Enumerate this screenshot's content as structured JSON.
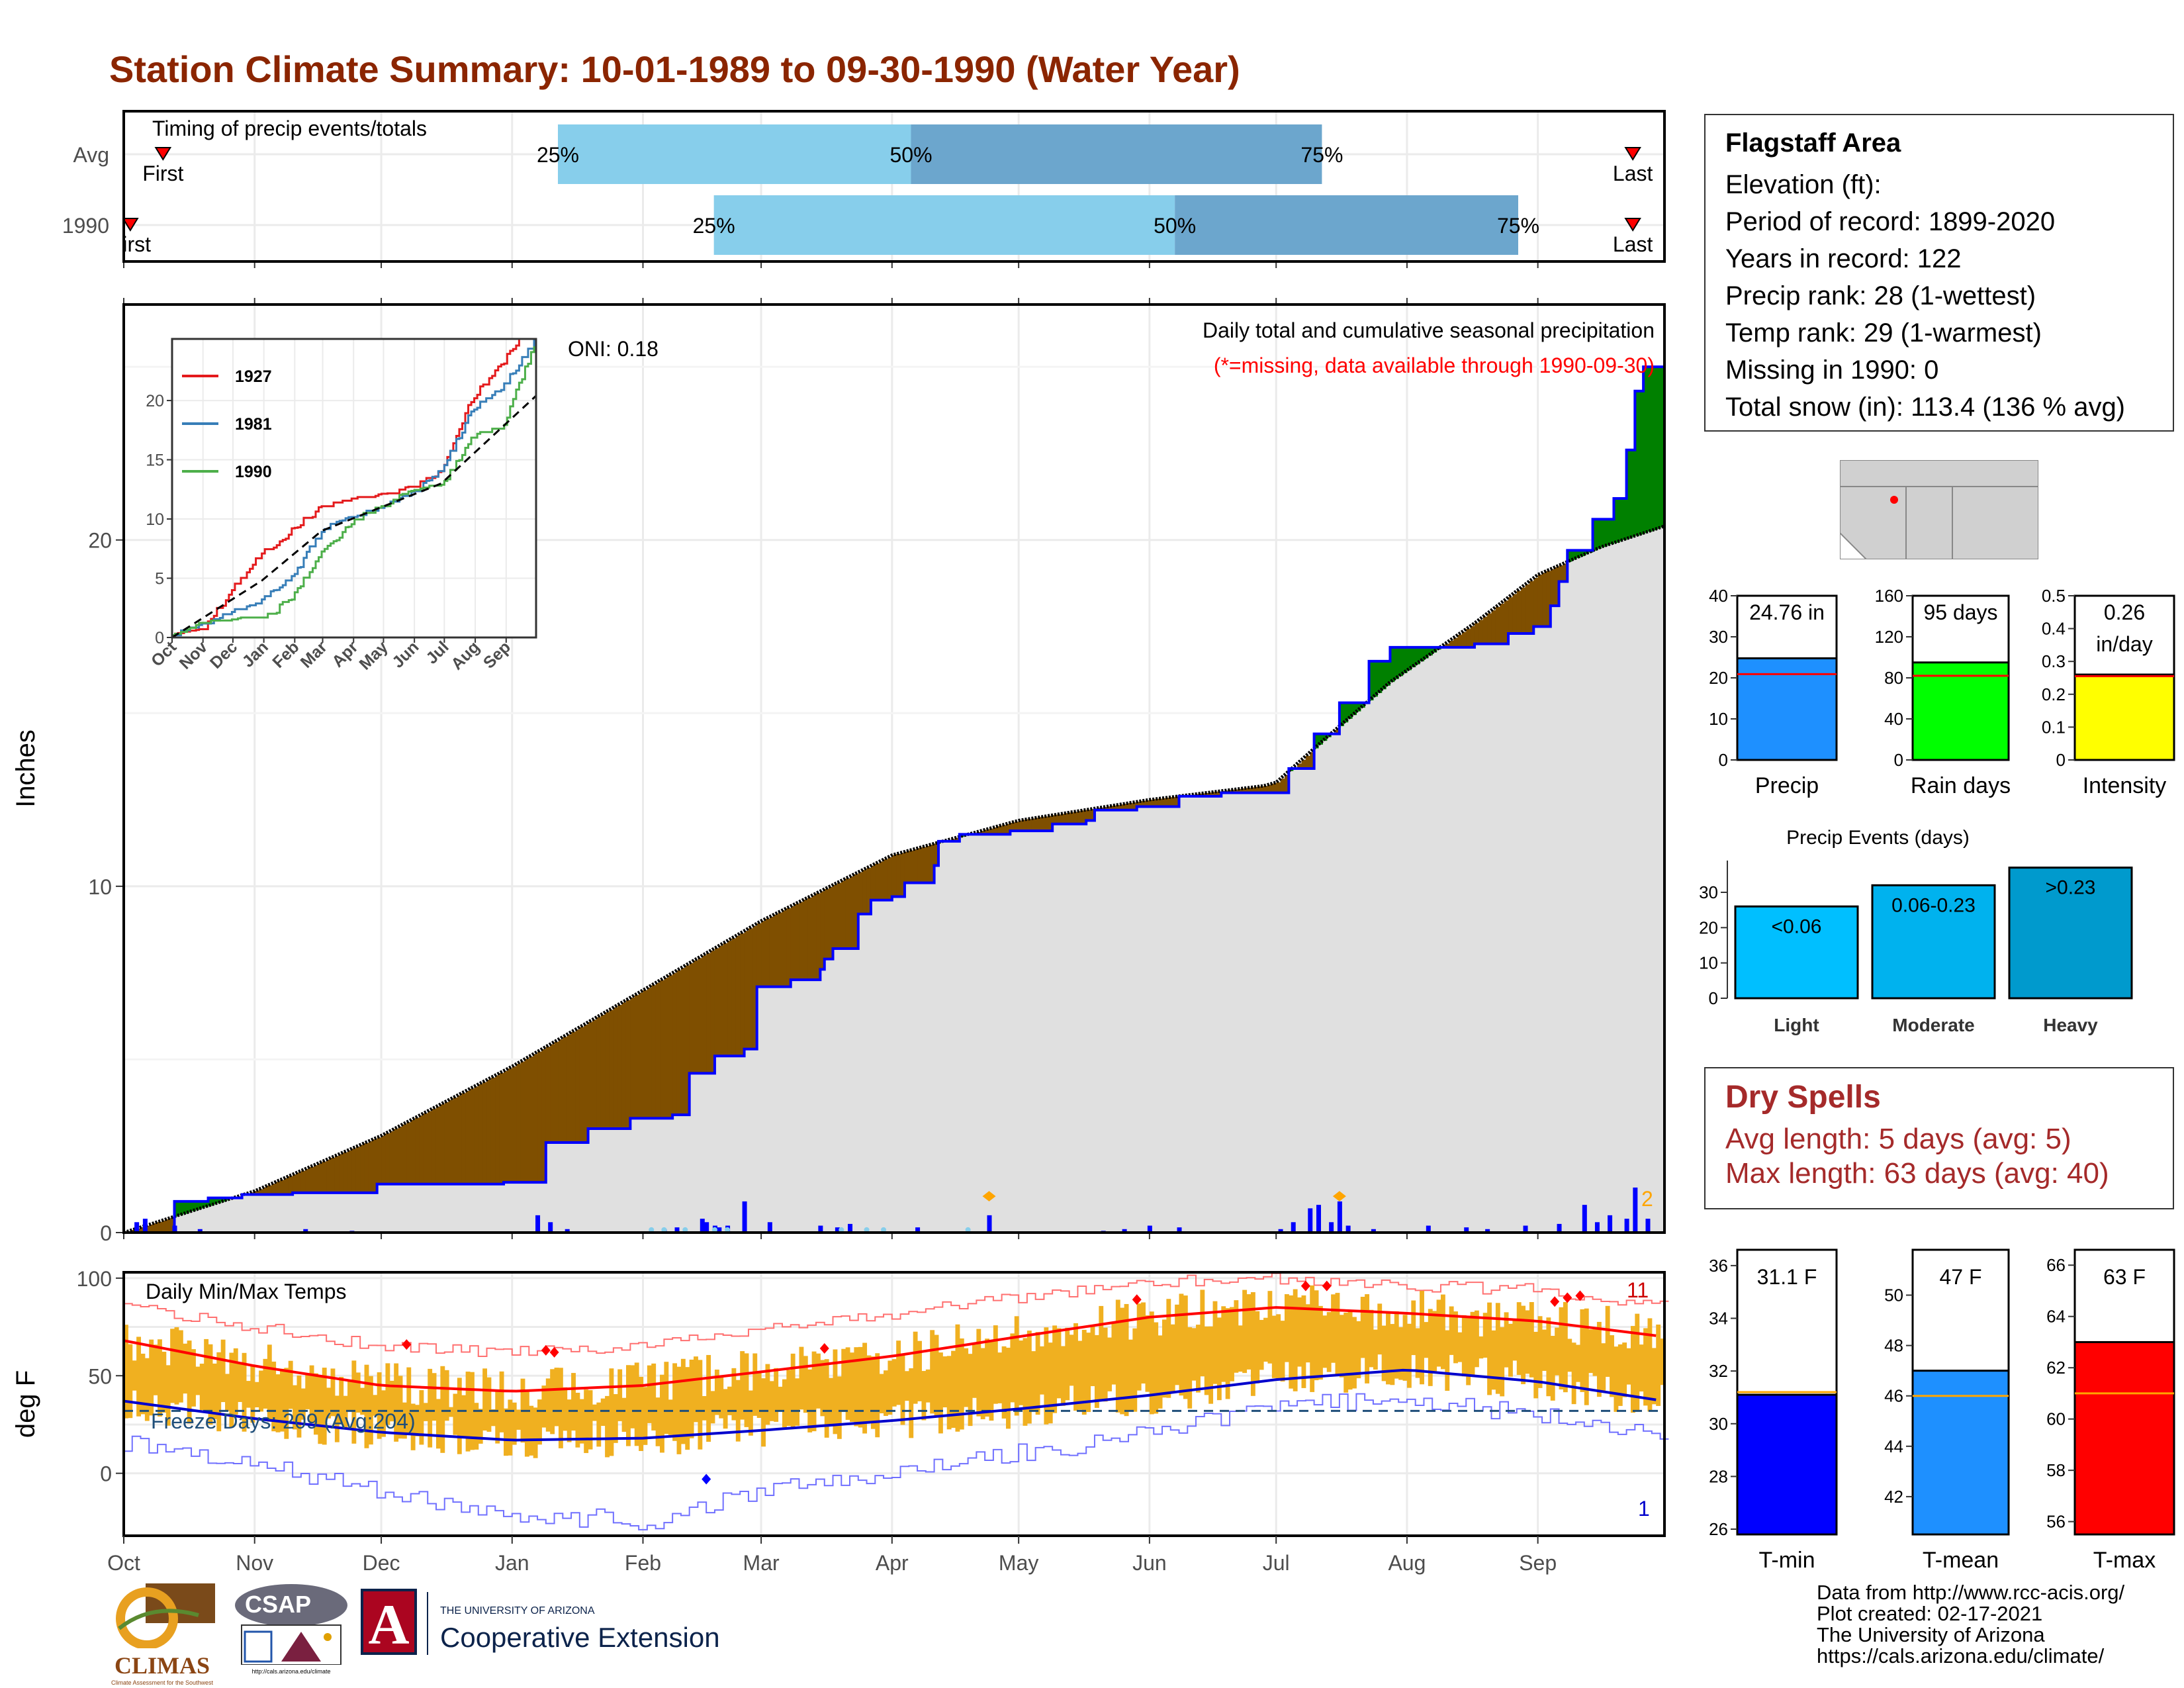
{
  "title": "Station Climate Summary: 10-01-1989 to 09-30-1990 (Water Year)",
  "colors": {
    "title": "#8b2500",
    "precip_fill": "#e0e0e0",
    "deficit": "#7f4f00",
    "surplus": "#008000",
    "obs_line": "#0000ff",
    "avg_line": "#000000",
    "temp_bar": "#f0b020",
    "tmax_avg": "#ff0000",
    "tmin_avg": "#0000cc",
    "light_blue": "#87ceeb",
    "mid_blue": "#6ca6cd"
  },
  "timing": {
    "title": "Timing of precip events/totals",
    "rows": [
      {
        "label": "Avg",
        "first_label": "First",
        "last_label": "Last",
        "first_month": 0.3,
        "last_month": 11.75,
        "p25": 3.35,
        "p50": 6.15,
        "p75": 9.35,
        "l25": "25%",
        "l50": "50%",
        "l75": "75%"
      },
      {
        "label": "1990",
        "first_label": "First",
        "last_label": "Last",
        "first_month": 0.05,
        "last_month": 11.75,
        "p25": 4.6,
        "p50": 8.2,
        "p75": 10.85,
        "l25": "25%",
        "l50": "50%",
        "l75": "75%"
      }
    ]
  },
  "months": [
    "Oct",
    "Nov",
    "Dec",
    "Jan",
    "Feb",
    "Mar",
    "Apr",
    "May",
    "Jun",
    "Jul",
    "Aug",
    "Sep"
  ],
  "month_days": [
    0,
    31,
    61,
    92,
    123,
    151,
    182,
    212,
    243,
    273,
    304,
    335,
    365
  ],
  "precip_panel": {
    "ylabel": "Inches",
    "y_ticks": [
      0,
      10,
      20
    ],
    "ylim": [
      0,
      26.8
    ],
    "oni": "ONI: 0.18",
    "caption": "Daily total and cumulative seasonal precipitation",
    "missing_note": "(*=missing, data available through 1990-09-30)",
    "marker_count": "2"
  },
  "inset": {
    "y_ticks": [
      0,
      5,
      10,
      15,
      20
    ],
    "x_labels": [
      "Oct",
      "Nov",
      "Dec",
      "Jan",
      "Feb",
      "Mar",
      "Apr",
      "May",
      "Jun",
      "Jul",
      "Aug",
      "Sep"
    ],
    "legend": [
      {
        "name": "1927",
        "color": "#e41a1c"
      },
      {
        "name": "1981",
        "color": "#377eb8"
      },
      {
        "name": "1990",
        "color": "#4daf4a"
      }
    ]
  },
  "temp_panel": {
    "ylabel": "deg F",
    "title": "Daily Min/Max Temps",
    "y_ticks": [
      0,
      50,
      100
    ],
    "ylim": [
      -32,
      103
    ],
    "freeze_label": "Freeze Days: 209 (Avg:204)",
    "freeze_line": 32,
    "record_high_count": "11",
    "record_low_count": "1"
  },
  "info": {
    "name": "Flagstaff Area",
    "lines": [
      "Elevation (ft):",
      "Period of record: 1899-2020",
      "Years in record: 122",
      "Precip rank: 28 (1-wettest)",
      "Temp rank: 29 (1-warmest)",
      "Missing in 1990: 0",
      "Total snow (in): 113.4 (136 % avg)"
    ]
  },
  "mini_bars": [
    {
      "label": "Precip",
      "value": 24.76,
      "avg": 20.9,
      "text1": "24.76 in",
      "text2": "",
      "max": 40,
      "ticks": [
        0,
        10,
        20,
        30,
        40
      ],
      "color": "#1e90ff"
    },
    {
      "label": "Rain days",
      "value": 95,
      "avg": 82,
      "text1": "95 days",
      "text2": "",
      "max": 160,
      "ticks": [
        0,
        40,
        80,
        120,
        160
      ],
      "color": "#00ff00"
    },
    {
      "label": "Intensity",
      "value": 0.26,
      "avg": 0.255,
      "text1": "0.26",
      "text2": "in/day",
      "max": 0.5,
      "ticks": [
        0.0,
        0.1,
        0.2,
        0.3,
        0.4,
        0.5
      ],
      "color": "#ffff00"
    }
  ],
  "precip_events": {
    "title": "Precip Events (days)",
    "ticks": [
      0,
      10,
      20,
      30
    ],
    "max": 39,
    "bars": [
      {
        "label": "Light",
        "range": "<0.06",
        "value": 26,
        "color": "#00bfff"
      },
      {
        "label": "Moderate",
        "range": "0.06-0.23",
        "value": 32,
        "color": "#00b2ee"
      },
      {
        "label": "Heavy",
        "range": ">0.23",
        "value": 37,
        "color": "#009acd"
      }
    ]
  },
  "dry_spells": {
    "title": "Dry Spells",
    "avg_length": "Avg length: 5 days (avg: 5)",
    "max_length": "Max length: 63 days (avg: 40)"
  },
  "temp_bars": [
    {
      "label": "T-min",
      "value": 31.1,
      "avg": 31.2,
      "text": "31.1 F",
      "min": 25.8,
      "max": 36.6,
      "ticks": [
        26,
        28,
        30,
        32,
        34,
        36
      ],
      "color": "#0000ff"
    },
    {
      "label": "T-mean",
      "value": 47,
      "avg": 46.0,
      "text": "47 F",
      "min": 40.5,
      "max": 51.8,
      "ticks": [
        42,
        44,
        46,
        48,
        50
      ],
      "color": "#1e90ff"
    },
    {
      "label": "T-max",
      "value": 63,
      "avg": 61.0,
      "text": "63 F",
      "min": 55.5,
      "max": 66.6,
      "ticks": [
        56,
        58,
        60,
        62,
        64,
        66
      ],
      "color": "#ff0000"
    }
  ],
  "logos": {
    "climas": "CLIMAS",
    "climas_sub": "Climate Assessment for the Southwest",
    "csap": "CSAP",
    "csap_url": "http://cals.arizona.edu/climate",
    "ua_letter": "A",
    "coop_top": "THE UNIVERSITY OF ARIZONA",
    "coop_name": "Cooperative Extension"
  },
  "footer": [
    "Data from http://www.rcc-acis.org/",
    "Plot created: 02-17-2021",
    "The University of Arizona",
    "https://cals.arizona.edu/climate/"
  ],
  "chart_data": [
    {
      "type": "area",
      "name": "cumulative precipitation",
      "x_unit": "day of water year",
      "observed_cumulative": [
        [
          0,
          0.0
        ],
        [
          12,
          0.9
        ],
        [
          20,
          1.0
        ],
        [
          28,
          1.1
        ],
        [
          31,
          1.1
        ],
        [
          40,
          1.15
        ],
        [
          60,
          1.4
        ],
        [
          90,
          1.45
        ],
        [
          92,
          1.45
        ],
        [
          99,
          1.45
        ],
        [
          100,
          2.6
        ],
        [
          110,
          3.0
        ],
        [
          120,
          3.3
        ],
        [
          123,
          3.3
        ],
        [
          130,
          3.4
        ],
        [
          134,
          4.6
        ],
        [
          140,
          5.1
        ],
        [
          147,
          5.3
        ],
        [
          150,
          7.1
        ],
        [
          158,
          7.3
        ],
        [
          165,
          7.6
        ],
        [
          166,
          7.9
        ],
        [
          168,
          8.2
        ],
        [
          174,
          9.2
        ],
        [
          177,
          9.6
        ],
        [
          182,
          9.7
        ],
        [
          185,
          10.1
        ],
        [
          192,
          10.6
        ],
        [
          193,
          11.3
        ],
        [
          198,
          11.5
        ],
        [
          210,
          11.6
        ],
        [
          220,
          11.8
        ],
        [
          228,
          11.9
        ],
        [
          230,
          12.2
        ],
        [
          240,
          12.3
        ],
        [
          250,
          12.6
        ],
        [
          260,
          12.7
        ],
        [
          273,
          12.7
        ],
        [
          276,
          13.4
        ],
        [
          282,
          14.4
        ],
        [
          288,
          15.3
        ],
        [
          295,
          16.5
        ],
        [
          300,
          16.9
        ],
        [
          320,
          17.0
        ],
        [
          328,
          17.3
        ],
        [
          334,
          17.5
        ],
        [
          338,
          18.1
        ],
        [
          340,
          18.8
        ],
        [
          342,
          19.7
        ],
        [
          348,
          20.6
        ],
        [
          353,
          21.2
        ],
        [
          356,
          22.6
        ],
        [
          358,
          24.3
        ],
        [
          360,
          25.0
        ],
        [
          365,
          25.0
        ]
      ],
      "average_cumulative": [
        [
          0,
          0.0
        ],
        [
          31,
          1.2
        ],
        [
          61,
          2.8
        ],
        [
          92,
          4.8
        ],
        [
          123,
          7.0
        ],
        [
          151,
          9.0
        ],
        [
          182,
          10.9
        ],
        [
          212,
          11.9
        ],
        [
          243,
          12.5
        ],
        [
          270,
          12.9
        ],
        [
          273,
          13.0
        ],
        [
          284,
          14.2
        ],
        [
          300,
          15.9
        ],
        [
          320,
          17.6
        ],
        [
          335,
          19.0
        ],
        [
          350,
          19.8
        ],
        [
          365,
          20.4
        ]
      ],
      "daily_precip": [
        [
          3,
          0.3
        ],
        [
          5,
          0.4
        ],
        [
          12,
          0.2
        ],
        [
          18,
          0.1
        ],
        [
          43,
          0.1
        ],
        [
          54,
          0.05
        ],
        [
          98,
          0.5
        ],
        [
          101,
          0.3
        ],
        [
          105,
          0.1
        ],
        [
          128,
          0.1
        ],
        [
          131,
          0.15
        ],
        [
          137,
          0.4
        ],
        [
          138,
          0.3
        ],
        [
          140,
          0.2
        ],
        [
          141,
          0.15
        ],
        [
          143,
          0.2
        ],
        [
          147,
          0.9
        ],
        [
          153,
          0.3
        ],
        [
          165,
          0.2
        ],
        [
          169,
          0.15
        ],
        [
          172,
          0.25
        ],
        [
          188,
          0.15
        ],
        [
          205,
          0.5
        ],
        [
          232,
          0.05
        ],
        [
          237,
          0.1
        ],
        [
          243,
          0.2
        ],
        [
          250,
          0.15
        ],
        [
          274,
          0.1
        ],
        [
          277,
          0.3
        ],
        [
          281,
          0.7
        ],
        [
          283,
          0.8
        ],
        [
          286,
          0.3
        ],
        [
          288,
          0.9
        ],
        [
          290,
          0.2
        ],
        [
          296,
          0.1
        ],
        [
          309,
          0.2
        ],
        [
          318,
          0.15
        ],
        [
          323,
          0.1
        ],
        [
          332,
          0.2
        ],
        [
          340,
          0.25
        ],
        [
          346,
          0.8
        ],
        [
          349,
          0.3
        ],
        [
          352,
          0.5
        ],
        [
          356,
          0.4
        ],
        [
          358,
          1.3
        ],
        [
          361,
          0.4
        ]
      ]
    },
    {
      "type": "line",
      "name": "inset cumulative precip",
      "series": [
        {
          "name": "1927",
          "points": [
            [
              0,
              0
            ],
            [
              30,
              0.5
            ],
            [
              60,
              4
            ],
            [
              90,
              7
            ],
            [
              120,
              9
            ],
            [
              150,
              11
            ],
            [
              180,
              11.5
            ],
            [
              240,
              12.5
            ],
            [
              270,
              14
            ],
            [
              300,
              20
            ],
            [
              330,
              23
            ],
            [
              365,
              27
            ]
          ]
        },
        {
          "name": "1981",
          "points": [
            [
              0,
              0
            ],
            [
              30,
              1
            ],
            [
              60,
              2
            ],
            [
              90,
              3
            ],
            [
              120,
              5
            ],
            [
              150,
              9
            ],
            [
              180,
              10
            ],
            [
              240,
              12
            ],
            [
              270,
              14
            ],
            [
              300,
              19
            ],
            [
              330,
              21
            ],
            [
              365,
              25
            ]
          ]
        },
        {
          "name": "1990",
          "points": [
            [
              0,
              0
            ],
            [
              30,
              1.1
            ],
            [
              60,
              1.4
            ],
            [
              90,
              1.45
            ],
            [
              120,
              3.3
            ],
            [
              150,
              7
            ],
            [
              180,
              9.7
            ],
            [
              240,
              12.3
            ],
            [
              270,
              12.7
            ],
            [
              300,
              16.9
            ],
            [
              330,
              17.5
            ],
            [
              365,
              25
            ]
          ]
        }
      ],
      "average": [
        [
          0,
          0
        ],
        [
          90,
          4.8
        ],
        [
          150,
          9
        ],
        [
          270,
          13
        ],
        [
          365,
          20.4
        ]
      ]
    },
    {
      "type": "bar",
      "name": "daily min/max temps",
      "tmax_avg": [
        [
          0,
          68
        ],
        [
          31,
          55
        ],
        [
          61,
          45
        ],
        [
          92,
          42
        ],
        [
          123,
          45
        ],
        [
          151,
          52
        ],
        [
          182,
          60
        ],
        [
          212,
          70
        ],
        [
          243,
          80
        ],
        [
          273,
          85
        ],
        [
          304,
          82
        ],
        [
          335,
          78
        ],
        [
          365,
          70
        ]
      ],
      "tmin_avg": [
        [
          0,
          37
        ],
        [
          31,
          28
        ],
        [
          61,
          21
        ],
        [
          92,
          17
        ],
        [
          123,
          18
        ],
        [
          151,
          22
        ],
        [
          182,
          27
        ],
        [
          212,
          33
        ],
        [
          243,
          40
        ],
        [
          273,
          48
        ],
        [
          304,
          53
        ],
        [
          335,
          47
        ],
        [
          365,
          37
        ]
      ],
      "record_high": [
        [
          0,
          85
        ],
        [
          31,
          75
        ],
        [
          61,
          65
        ],
        [
          92,
          62
        ],
        [
          123,
          65
        ],
        [
          151,
          75
        ],
        [
          182,
          82
        ],
        [
          212,
          90
        ],
        [
          243,
          98
        ],
        [
          273,
          100
        ],
        [
          304,
          96
        ],
        [
          335,
          94
        ],
        [
          365,
          85
        ]
      ],
      "record_low": [
        [
          0,
          15
        ],
        [
          31,
          5
        ],
        [
          61,
          -10
        ],
        [
          92,
          -20
        ],
        [
          123,
          -25
        ],
        [
          151,
          -10
        ],
        [
          182,
          0
        ],
        [
          212,
          10
        ],
        [
          243,
          20
        ],
        [
          273,
          35
        ],
        [
          304,
          38
        ],
        [
          335,
          30
        ],
        [
          365,
          18
        ]
      ]
    }
  ]
}
